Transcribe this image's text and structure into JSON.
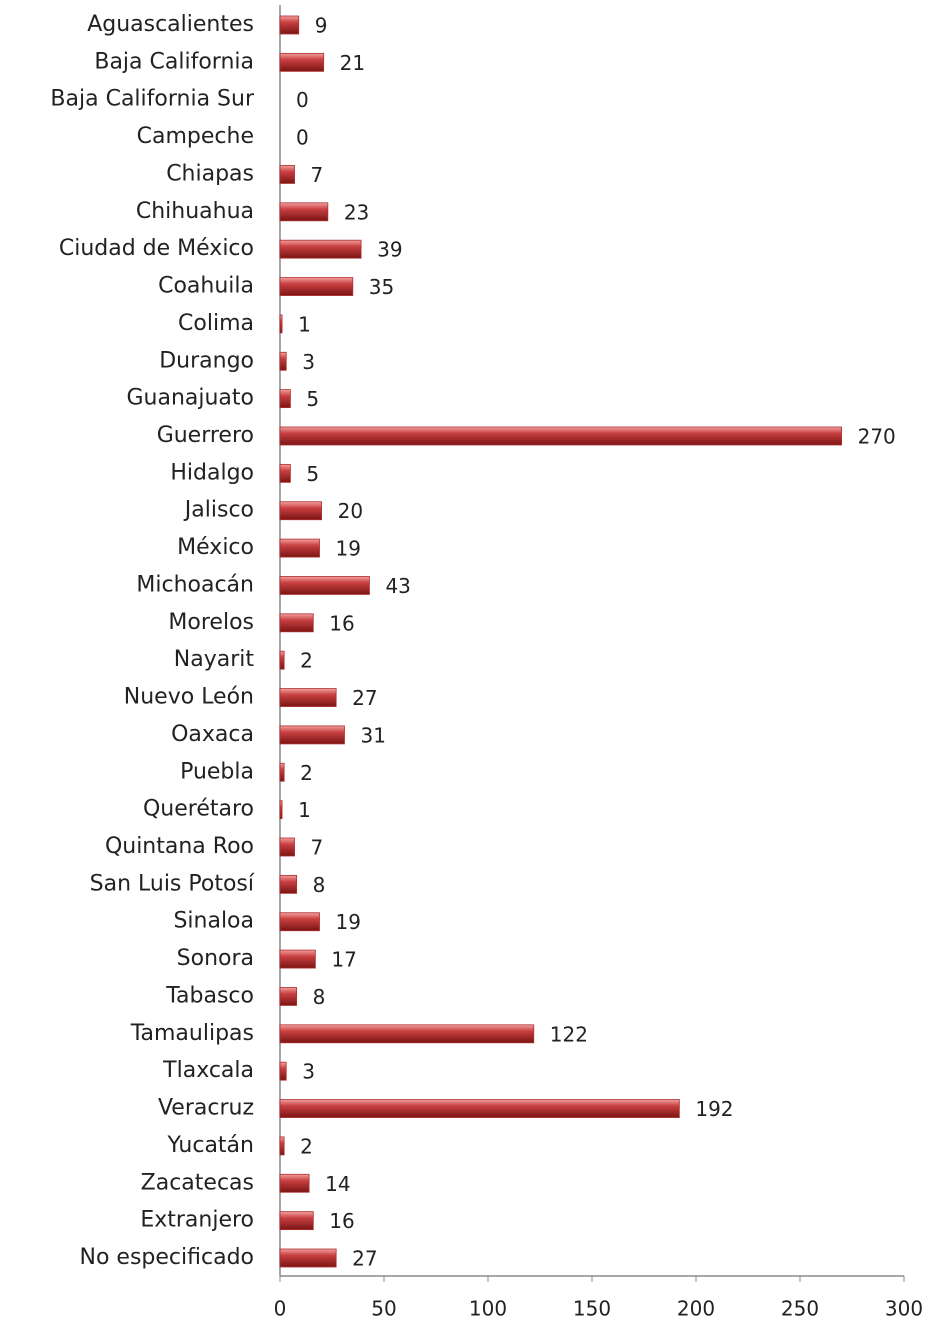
{
  "chart_data": {
    "type": "bar",
    "categories": [
      "Aguascalientes",
      "Baja California",
      "Baja California Sur",
      "Campeche",
      "Chiapas",
      "Chihuahua",
      "Ciudad de México",
      "Coahuila",
      "Colima",
      "Durango",
      "Guanajuato",
      "Guerrero",
      "Hidalgo",
      "Jalisco",
      "México",
      "Michoacán",
      "Morelos",
      "Nayarit",
      "Nuevo León",
      "Oaxaca",
      "Puebla",
      "Querétaro",
      "Quintana Roo",
      "San Luis Potosí",
      "Sinaloa",
      "Sonora",
      "Tabasco",
      "Tamaulipas",
      "Tlaxcala",
      "Veracruz",
      "Yucatán",
      "Zacatecas",
      "Extranjero",
      "No especificado"
    ],
    "values": [
      9,
      21,
      0,
      0,
      7,
      23,
      39,
      35,
      1,
      3,
      5,
      270,
      5,
      20,
      19,
      43,
      16,
      2,
      27,
      31,
      2,
      1,
      7,
      8,
      19,
      17,
      8,
      122,
      3,
      192,
      2,
      14,
      16,
      27
    ],
    "color": "#b03030",
    "xlim": [
      0,
      300
    ],
    "xticks": [
      0,
      50,
      100,
      150,
      200,
      250,
      300
    ]
  }
}
